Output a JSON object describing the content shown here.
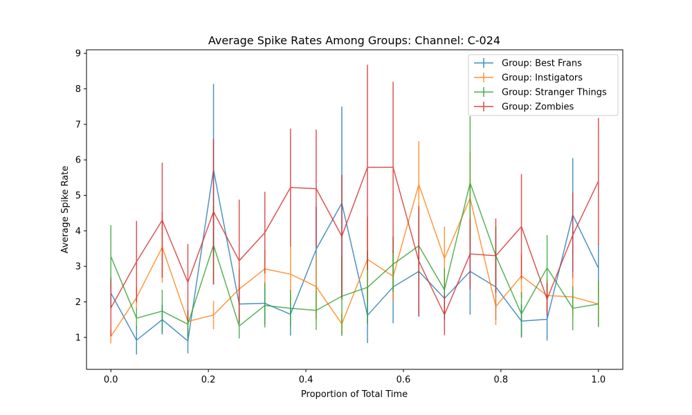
{
  "chart_data": {
    "type": "line",
    "title": "Average Spike Rates Among Groups: Channel: C-024",
    "xlabel": "Proportion of Total Time",
    "ylabel": "Average Spike Rate",
    "xlim": [
      -0.05,
      1.05
    ],
    "ylim": [
      0.1,
      9.1
    ],
    "xticks": [
      0.0,
      0.2,
      0.4,
      0.6,
      0.8,
      1.0
    ],
    "xtick_labels": [
      "0.0",
      "0.2",
      "0.4",
      "0.6",
      "0.8",
      "1.0"
    ],
    "yticks": [
      1,
      2,
      3,
      4,
      5,
      6,
      7,
      8,
      9
    ],
    "ytick_labels": [
      "1",
      "2",
      "3",
      "4",
      "5",
      "6",
      "7",
      "8",
      "9"
    ],
    "grid": false,
    "legend_position": "top-right",
    "x": [
      0.0,
      0.0526,
      0.1053,
      0.1579,
      0.2105,
      0.2632,
      0.3158,
      0.3684,
      0.4211,
      0.4737,
      0.5263,
      0.5789,
      0.6316,
      0.6842,
      0.7368,
      0.7895,
      0.8421,
      0.8947,
      0.9474,
      1.0
    ],
    "series": [
      {
        "name": "Group: Best Frans",
        "color": "#1f77b4",
        "values": [
          2.25,
          0.92,
          1.5,
          0.9,
          5.72,
          1.94,
          1.96,
          1.65,
          3.48,
          4.78,
          1.62,
          2.42,
          2.86,
          2.1,
          2.86,
          2.42,
          1.46,
          1.51,
          4.45,
          2.95
        ],
        "errors": [
          0.45,
          0.4,
          0.42,
          0.35,
          2.42,
          0.55,
          0.6,
          0.6,
          1.2,
          2.72,
          0.78,
          1.02,
          1.28,
          0.6,
          1.22,
          0.92,
          0.47,
          0.6,
          1.6,
          0.7
        ]
      },
      {
        "name": "Group: Instigators",
        "color": "#ff7f0e",
        "values": [
          1.03,
          2.12,
          3.54,
          1.45,
          1.63,
          2.36,
          2.93,
          2.78,
          2.43,
          1.38,
          3.2,
          2.72,
          5.31,
          3.22,
          4.92,
          1.87,
          2.73,
          2.18,
          2.14,
          1.94
        ],
        "errors": [
          0.2,
          0.3,
          1.0,
          0.25,
          0.4,
          0.55,
          0.55,
          0.8,
          0.9,
          0.3,
          1.2,
          0.7,
          1.22,
          0.9,
          1.32,
          0.52,
          0.62,
          0.45,
          0.55,
          0.6
        ]
      },
      {
        "name": "Group: Stranger Things",
        "color": "#2ca02c",
        "values": [
          3.28,
          1.54,
          1.74,
          1.37,
          3.6,
          1.32,
          1.9,
          1.82,
          1.76,
          2.16,
          2.41,
          3.06,
          3.58,
          2.34,
          5.35,
          3.3,
          1.66,
          2.96,
          1.82,
          1.94
        ],
        "errors": [
          0.88,
          0.3,
          0.6,
          0.4,
          1.1,
          0.35,
          0.62,
          0.52,
          0.55,
          1.12,
          1.02,
          0.78,
          1.02,
          0.62,
          1.88,
          0.82,
          0.62,
          0.92,
          0.62,
          0.65
        ]
      },
      {
        "name": "Group: Zombies",
        "color": "#d62728",
        "values": [
          1.83,
          3.13,
          4.3,
          2.55,
          4.54,
          3.16,
          3.95,
          5.22,
          5.19,
          3.85,
          5.79,
          5.79,
          3.15,
          1.64,
          3.35,
          3.3,
          4.12,
          2.08,
          3.88,
          5.4
        ],
        "errors": [
          0.8,
          1.15,
          1.62,
          1.08,
          2.05,
          1.72,
          1.15,
          1.66,
          1.66,
          1.73,
          2.89,
          2.41,
          1.55,
          0.58,
          1.0,
          1.05,
          1.48,
          0.45,
          1.2,
          1.78
        ]
      }
    ]
  }
}
